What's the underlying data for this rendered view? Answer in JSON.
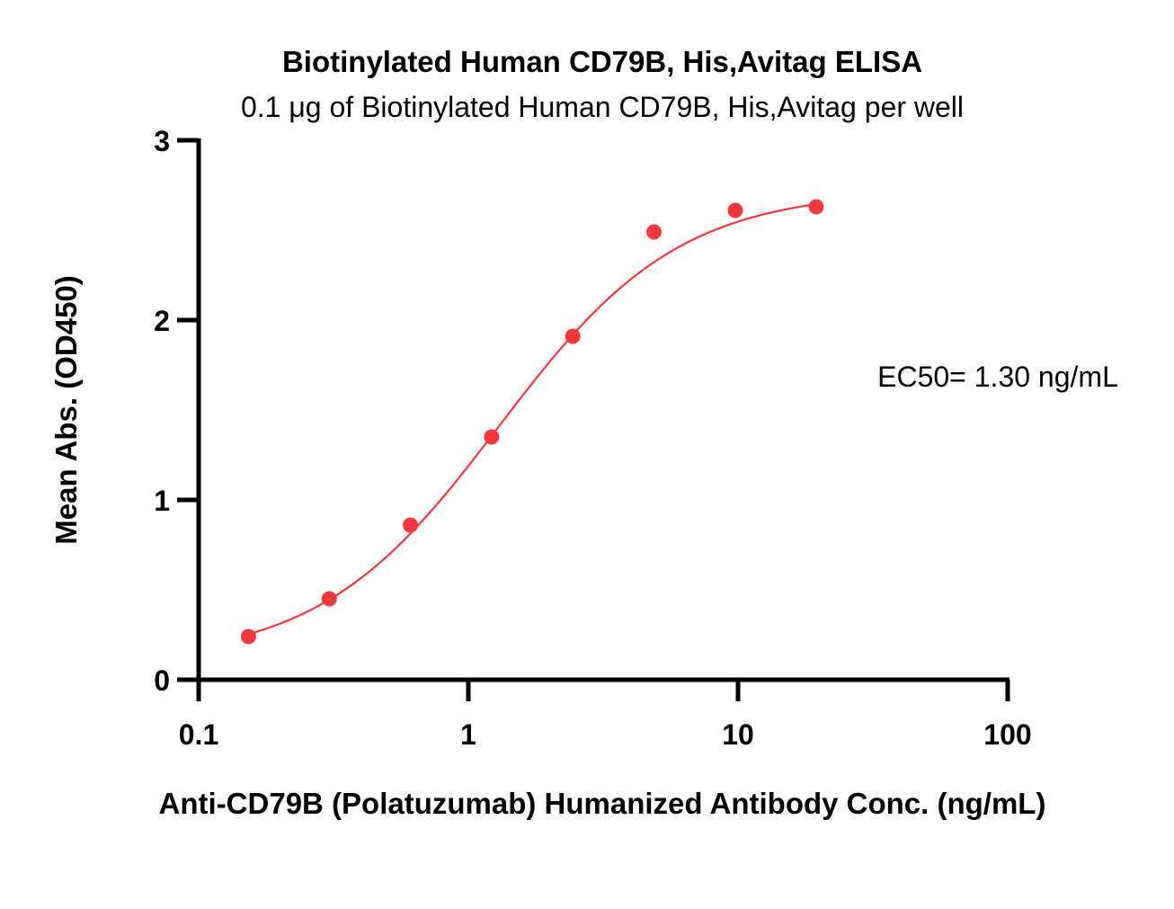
{
  "chart_data": {
    "type": "scatter",
    "title": "Biotinylated Human CD79B, His,Avitag ELISA",
    "subtitle": "0.1 μg of Biotinylated Human CD79B, His,Avitag per well",
    "xlabel": "Anti-CD79B (Polatuzumab) Humanized Antibody Conc. (ng/mL)",
    "ylabel": "Mean Abs. (OD450)",
    "x_scale": "log",
    "xlim": [
      0.1,
      100
    ],
    "ylim": [
      0,
      3
    ],
    "x_ticks": [
      0.1,
      1,
      10,
      100
    ],
    "x_tick_labels": [
      "0.1",
      "1",
      "10",
      "100"
    ],
    "y_ticks": [
      0,
      1,
      2,
      3
    ],
    "y_tick_labels": [
      "0",
      "1",
      "2",
      "3"
    ],
    "grid": false,
    "annotation": "EC50= 1.30 ng/mL",
    "color": "#f0383f",
    "series": [
      {
        "points": [
          {
            "x": 0.153,
            "y": 0.24
          },
          {
            "x": 0.305,
            "y": 0.45
          },
          {
            "x": 0.61,
            "y": 0.86
          },
          {
            "x": 1.22,
            "y": 1.35
          },
          {
            "x": 2.44,
            "y": 1.91
          },
          {
            "x": 4.88,
            "y": 2.49
          },
          {
            "x": 9.77,
            "y": 2.61
          },
          {
            "x": 19.5,
            "y": 2.63
          }
        ],
        "fit": {
          "model": "4PL",
          "bottom": 0.1,
          "top": 2.72,
          "ec50": 1.3,
          "hill": 1.3,
          "x_range": [
            0.153,
            19.5
          ]
        }
      }
    ]
  }
}
